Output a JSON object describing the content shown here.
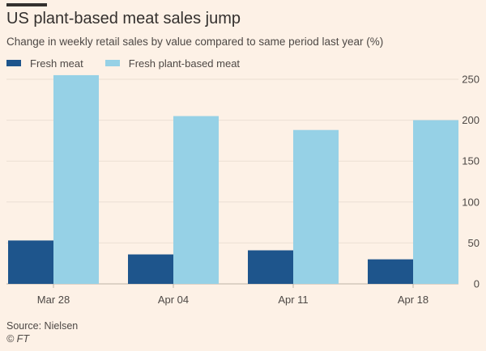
{
  "chart_data": {
    "type": "bar",
    "title": "US plant-based meat sales jump",
    "subtitle": "Change in weekly retail sales by value compared to same period last year (%)",
    "categories": [
      "Mar 28",
      "Apr 04",
      "Apr 11",
      "Apr 18"
    ],
    "series": [
      {
        "name": "Fresh meat",
        "color": "#1e558c",
        "values": [
          53,
          36,
          41,
          30
        ]
      },
      {
        "name": "Fresh plant-based meat",
        "color": "#96d1e6",
        "values": [
          255,
          205,
          188,
          200
        ]
      }
    ],
    "ylim": [
      0,
      250
    ],
    "yticks": [
      0,
      50,
      100,
      150,
      200,
      250
    ],
    "ytick_labels": [
      "0",
      "50",
      "100",
      "150",
      "200",
      "250"
    ],
    "xlabel": "",
    "ylabel": "",
    "grid": true,
    "legend_position": "top-left",
    "source": "Source: Nielsen",
    "credit": "© FT"
  }
}
